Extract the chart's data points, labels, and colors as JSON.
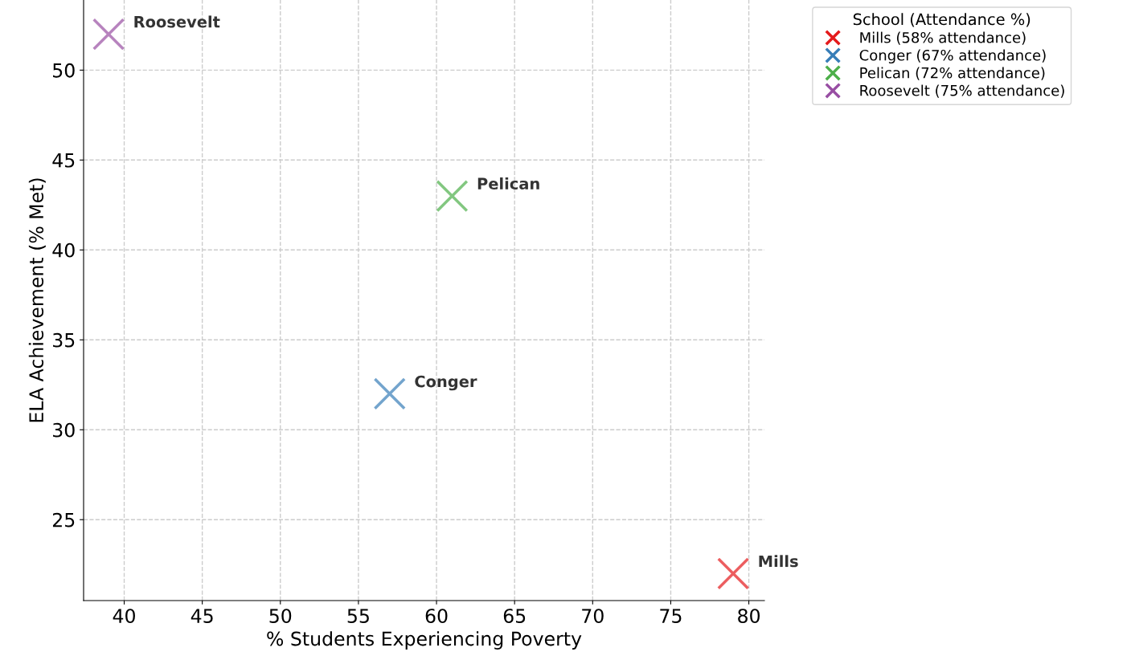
{
  "chart_data": {
    "type": "scatter",
    "xlabel": "% Students Experiencing Poverty",
    "ylabel": "ELA Achievement (% Met)",
    "legend_title": "School (Attendance %)",
    "legend": "top right",
    "grid": true,
    "marker": "cross",
    "xlim": [
      37.4,
      81
    ],
    "ylim": [
      20.5,
      53.9
    ],
    "xticks": [
      40,
      45,
      50,
      55,
      60,
      65,
      70,
      75,
      80
    ],
    "yticks": [
      25,
      30,
      35,
      40,
      45,
      50
    ],
    "series": [
      {
        "name": "Mills (58% attendance)",
        "color": "#e41a1c",
        "x": [
          79
        ],
        "values": [
          22
        ]
      },
      {
        "name": "Conger (67% attendance)",
        "color": "#377eb8",
        "x": [
          57
        ],
        "values": [
          32
        ]
      },
      {
        "name": "Pelican (72% attendance)",
        "color": "#4daf4a",
        "x": [
          61
        ],
        "values": [
          43
        ]
      },
      {
        "name": "Roosevelt (75% attendance)",
        "color": "#984ea3",
        "x": [
          39
        ],
        "values": [
          52
        ]
      }
    ],
    "annotations": [
      {
        "text": "Mills",
        "x": 79,
        "y": 22
      },
      {
        "text": "Conger",
        "x": 57,
        "y": 32
      },
      {
        "text": "Pelican",
        "x": 61,
        "y": 43
      },
      {
        "text": "Roosevelt",
        "x": 39,
        "y": 52
      }
    ]
  }
}
